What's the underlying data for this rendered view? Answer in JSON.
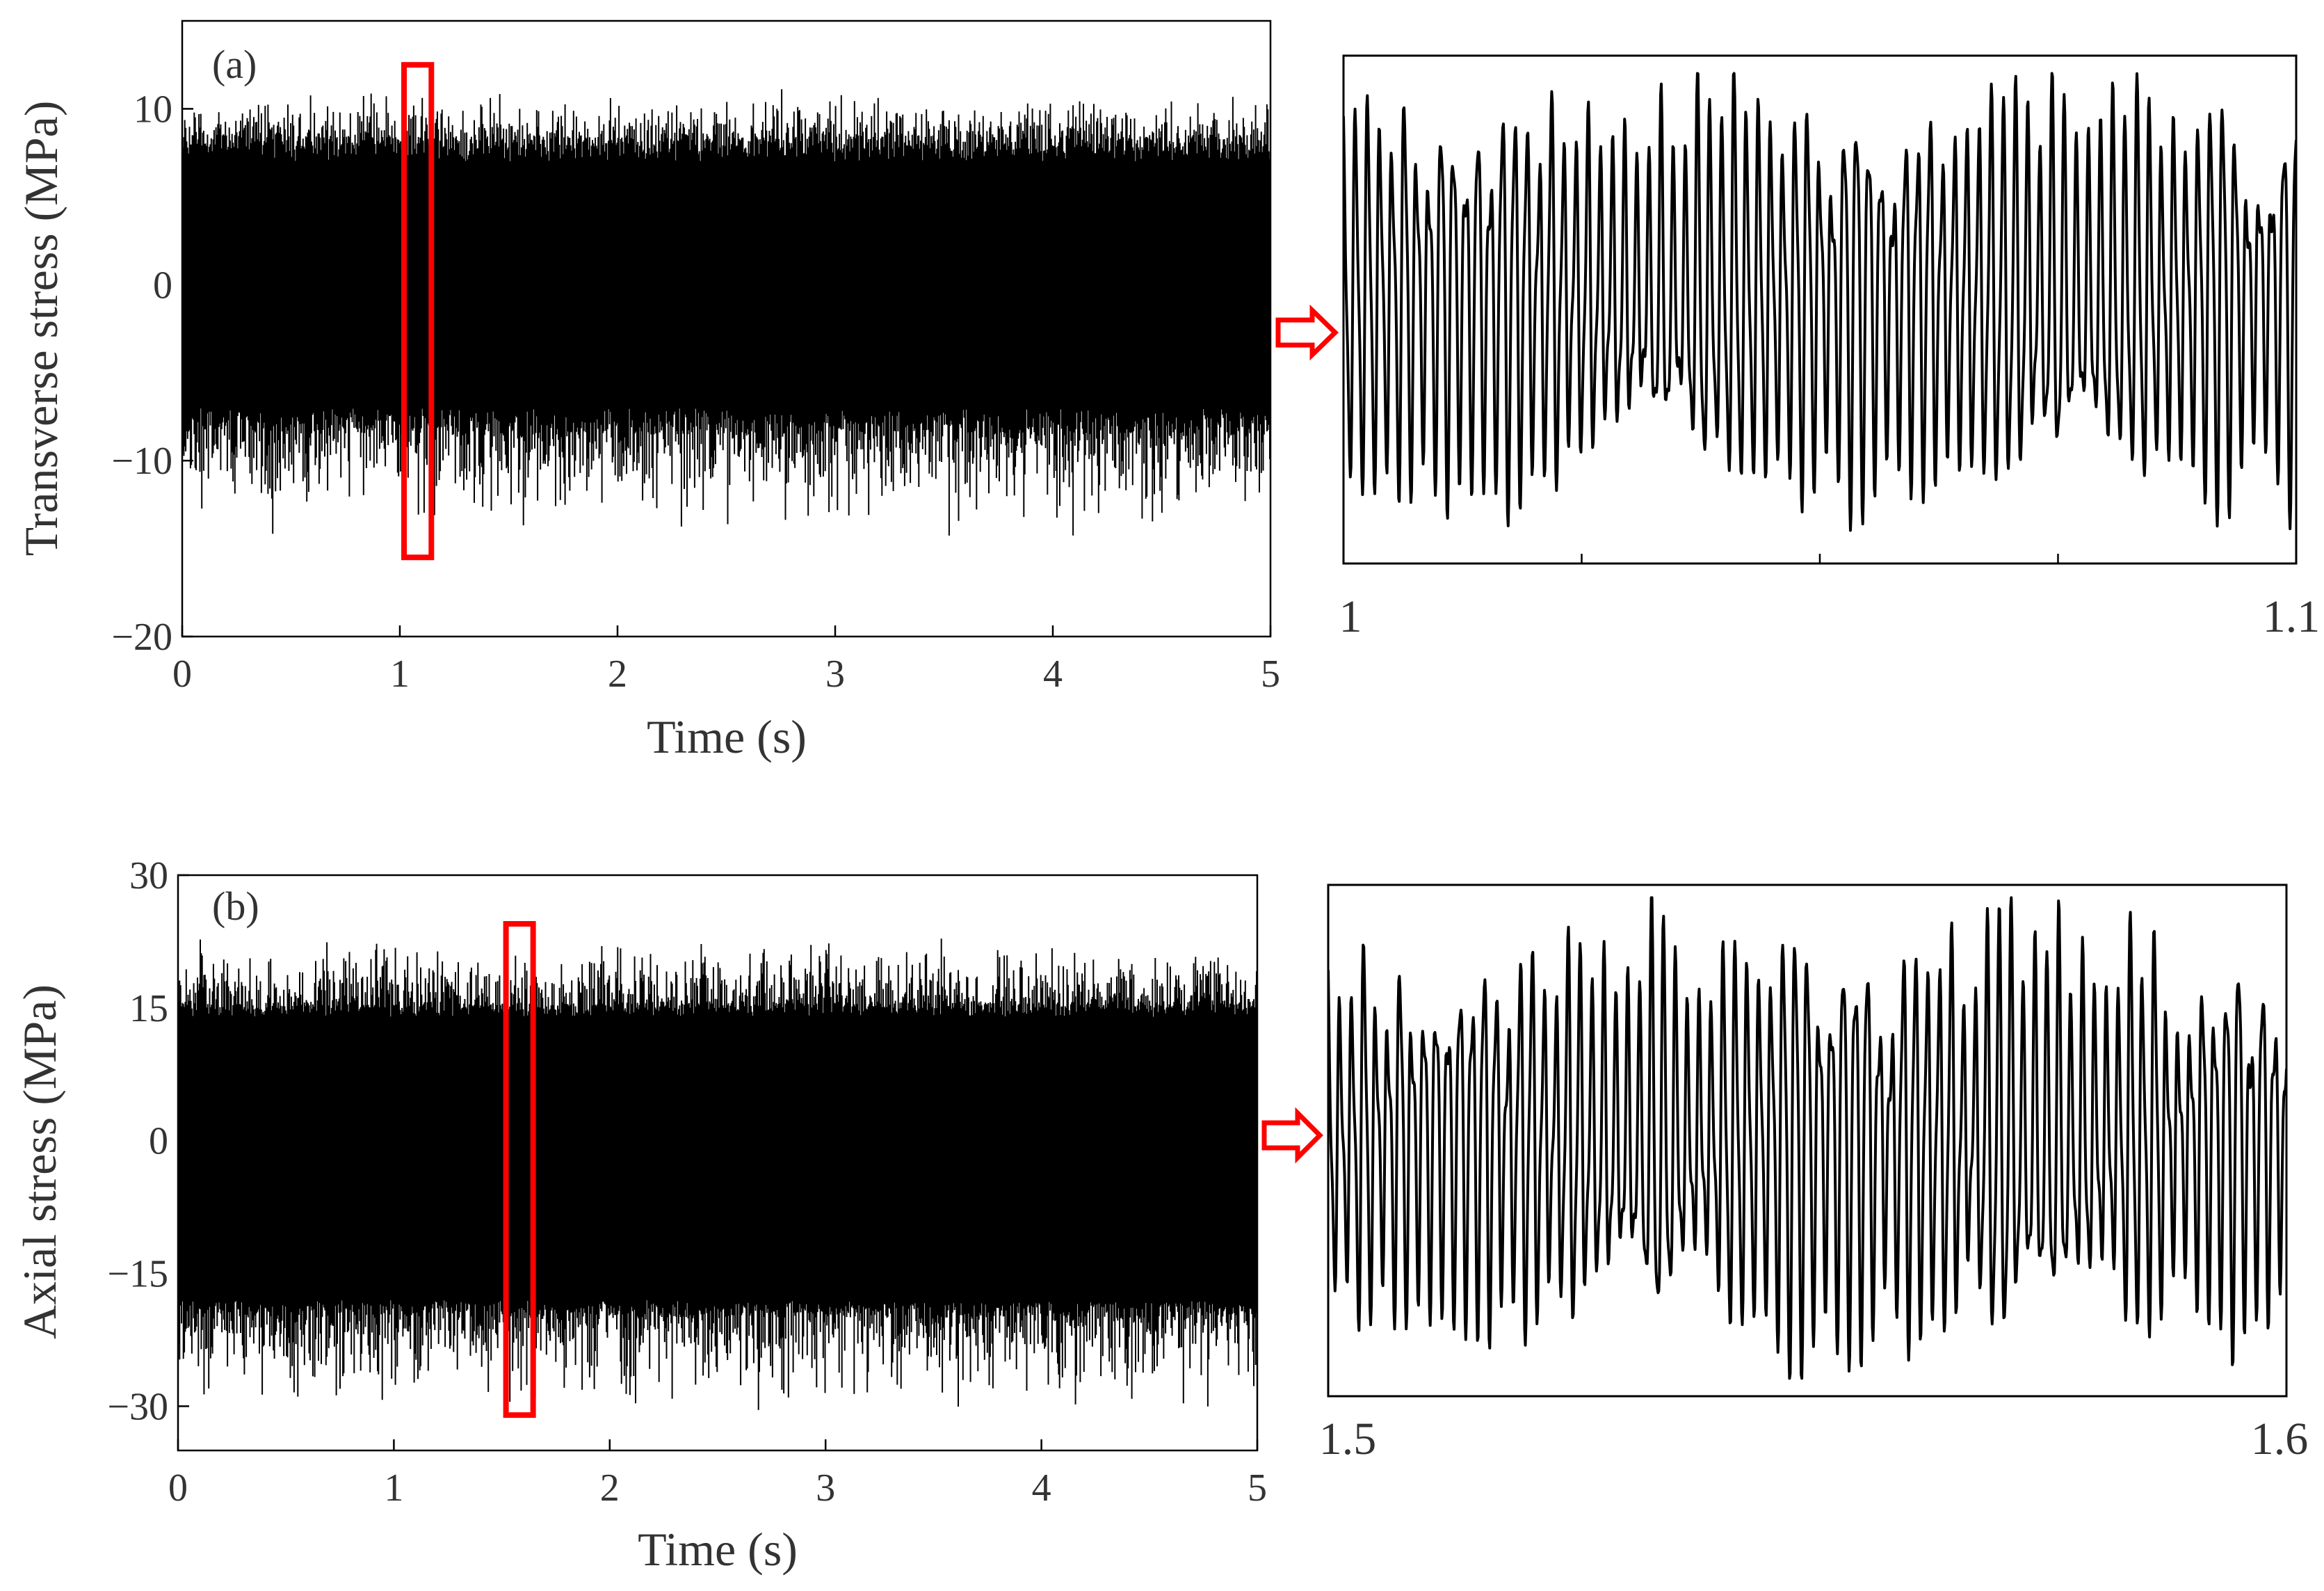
{
  "colors": {
    "signal": "#000000",
    "highlight": "#ff0000",
    "axis": "#000000",
    "text": "#333333"
  },
  "chart_data": [
    {
      "type": "line",
      "panel_label": "(a)",
      "xlabel": "Time (s)",
      "ylabel": "Transverse stress (MPa)",
      "xlim": [
        0,
        5
      ],
      "ylim": [
        -20,
        15
      ],
      "xticks": [
        "0",
        "1",
        "2",
        "3",
        "4",
        "5"
      ],
      "yticks": [
        "10",
        "0",
        "−10",
        "−20"
      ],
      "highlight_window": {
        "x": [
          1.0,
          1.1
        ],
        "y": [
          -15.5,
          12.5
        ]
      },
      "series": [
        {
          "envelope_upper_typical": 7,
          "envelope_lower_typical": -7,
          "peak_max": 10.2,
          "peak_min": -13.5
        }
      ]
    },
    {
      "type": "line",
      "panel_label": "",
      "xlabel": "",
      "ylabel": "",
      "xlim": [
        1.0,
        1.1
      ],
      "xticks": [
        "1",
        "1.1"
      ],
      "series": [
        {
          "x_start": 1.0,
          "x_end": 1.1,
          "cycles": 78,
          "min_relative": -0.92,
          "max_relative": 0.93
        }
      ]
    },
    {
      "type": "line",
      "panel_label": "(b)",
      "xlabel": "Time (s)",
      "ylabel": "Axial stress (MPa)",
      "xlim": [
        0,
        5
      ],
      "ylim": [
        -35,
        30
      ],
      "xticks": [
        "0",
        "1",
        "2",
        "3",
        "4",
        "5"
      ],
      "yticks": [
        "30",
        "15",
        "0",
        "−15",
        "−30"
      ],
      "highlight_window": {
        "x": [
          1.5,
          1.6
        ],
        "y": [
          -31,
          24.5
        ]
      },
      "series": [
        {
          "envelope_upper_typical": 14,
          "envelope_lower_typical": -18,
          "peak_max": 22,
          "peak_min": -30
        }
      ]
    },
    {
      "type": "line",
      "panel_label": "",
      "xlabel": "",
      "ylabel": "",
      "xlim": [
        1.5,
        1.6
      ],
      "xticks": [
        "1.5",
        "1.6"
      ],
      "series": [
        {
          "x_start": 1.5,
          "x_end": 1.6,
          "cycles": 80,
          "min_relative": -0.93,
          "max_relative": 0.95
        }
      ]
    }
  ]
}
